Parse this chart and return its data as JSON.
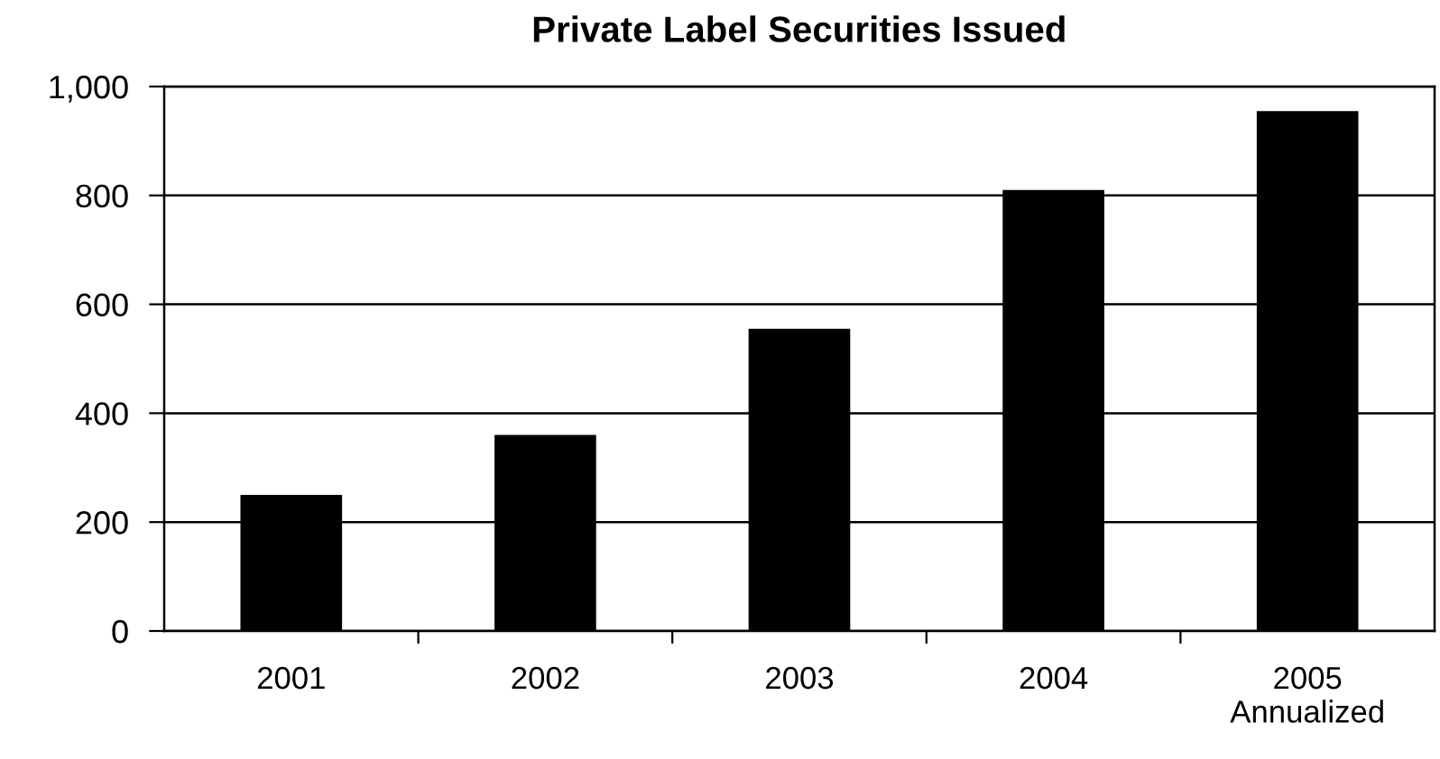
{
  "chart_data": {
    "type": "bar",
    "title": "Private Label Securities Issued",
    "categories": [
      "2001",
      "2002",
      "2003",
      "2004",
      "2005\nAnnualized"
    ],
    "values": [
      250,
      360,
      555,
      810,
      955
    ],
    "color": "#000000",
    "ylim": [
      0,
      1000
    ],
    "yticks": [
      0,
      200,
      400,
      600,
      800,
      {
        "value": 1000,
        "label": "1,000"
      }
    ],
    "grid": "y"
  }
}
